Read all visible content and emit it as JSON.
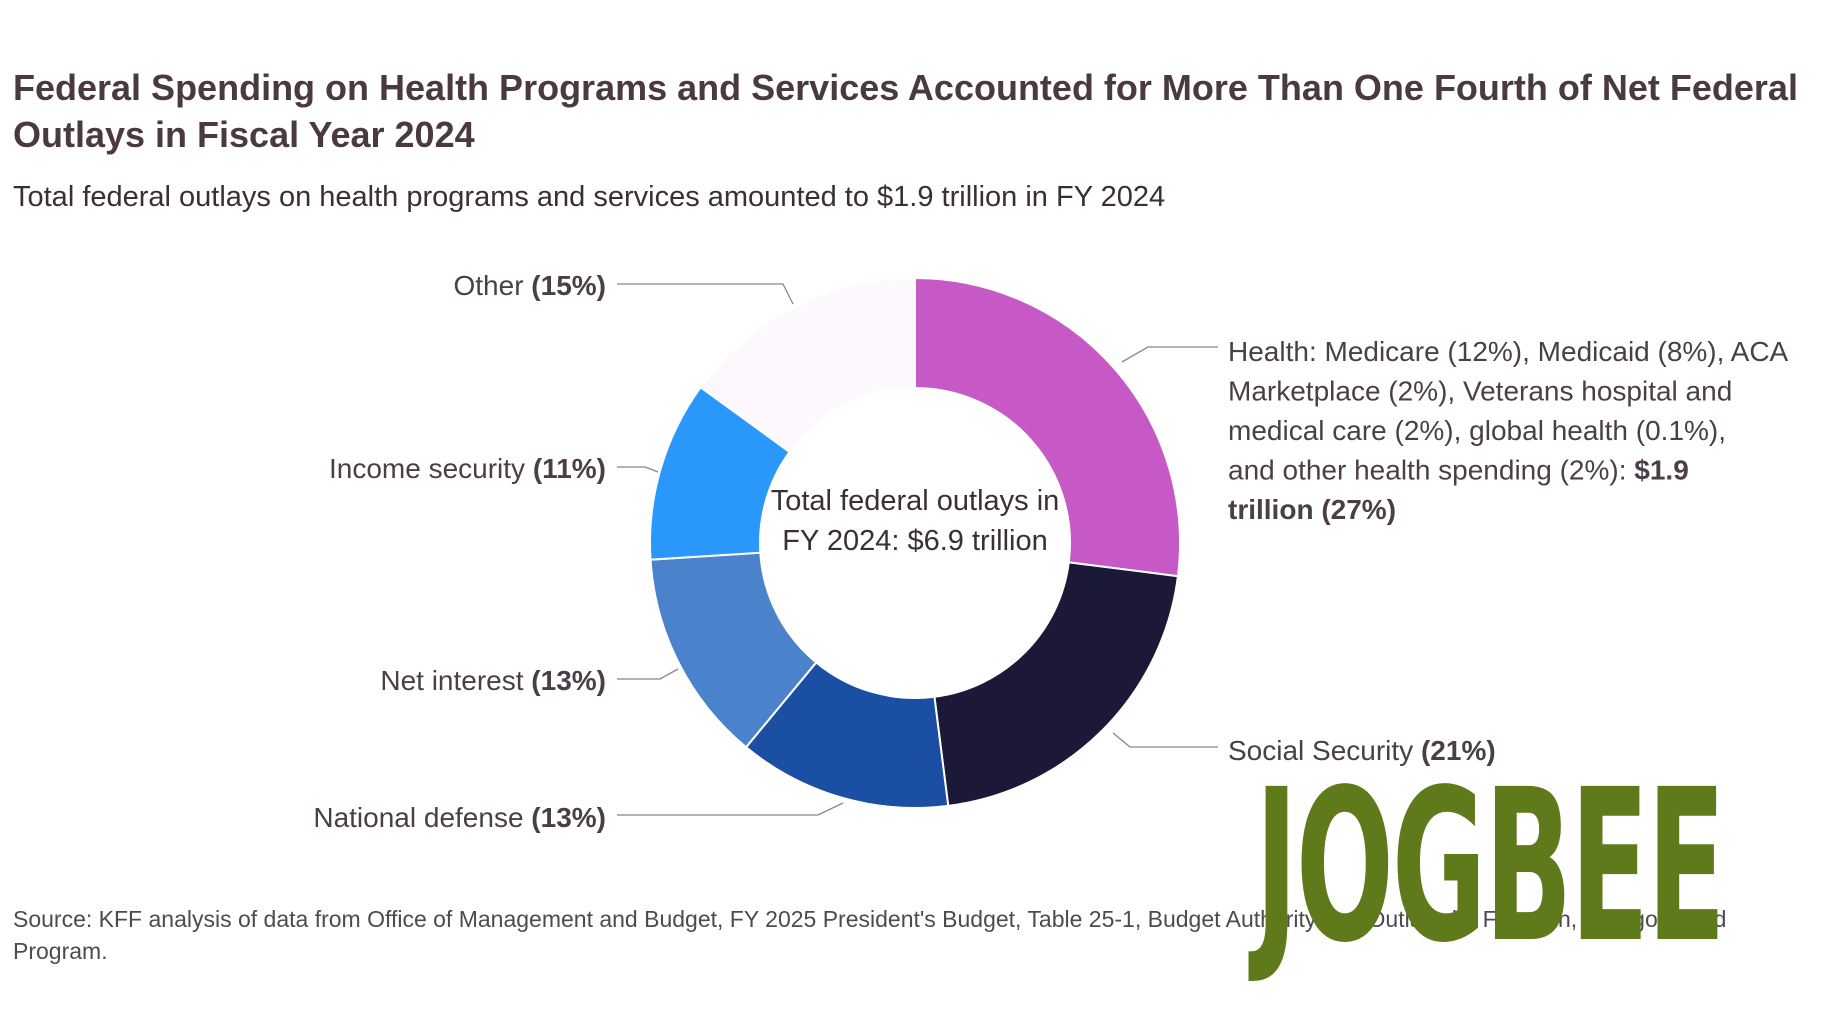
{
  "title": "Federal Spending on Health Programs and Services Accounted for More Than One Fourth of Net Federal Outlays in Fiscal Year 2024",
  "subtitle": "Total federal outlays on health programs and services amounted to $1.9 trillion in FY 2024",
  "center_label": "Total federal outlays in FY 2024: $6.9 trillion",
  "source": "Source: KFF analysis of data from Office of Management and Budget, FY 2025 President's Budget, Table 25-1, Budget Authority and Outlays by Function, Category, and Program.",
  "watermark": "JOGBEE",
  "chart_data": {
    "type": "pie",
    "variant": "donut",
    "start_angle_deg": 0,
    "direction": "clockwise",
    "slices": [
      {
        "name": "Health",
        "value": 27,
        "color": "#c659c6",
        "label_lines": [
          [
            {
              "t": "Health: Medicare (12%), Medicaid (8%), ACA",
              "b": false
            }
          ],
          [
            {
              "t": "Marketplace (2%), Veterans hospital and",
              "b": false
            }
          ],
          [
            {
              "t": "medical care (2%), global health (0.1%),",
              "b": false
            }
          ],
          [
            {
              "t": "and other health spending (2%): ",
              "b": false
            },
            {
              "t": "$1.9",
              "b": true
            }
          ],
          [
            {
              "t": "trillion (27%)",
              "b": true
            }
          ]
        ]
      },
      {
        "name": "Social Security",
        "value": 21,
        "color": "#1c1838",
        "label_lines": [
          [
            {
              "t": "Social Security ",
              "b": false
            },
            {
              "t": "(21%)",
              "b": true
            }
          ]
        ]
      },
      {
        "name": "National defense",
        "value": 13,
        "color": "#1b4fa3",
        "label_lines": [
          [
            {
              "t": "National defense ",
              "b": false
            },
            {
              "t": "(13%)",
              "b": true
            }
          ]
        ]
      },
      {
        "name": "Net interest",
        "value": 13,
        "color": "#4a82cc",
        "label_lines": [
          [
            {
              "t": "Net interest ",
              "b": false
            },
            {
              "t": "(13%)",
              "b": true
            }
          ]
        ]
      },
      {
        "name": "Income security",
        "value": 11,
        "color": "#2998fa",
        "label_lines": [
          [
            {
              "t": "Income security ",
              "b": false
            },
            {
              "t": "(11%)",
              "b": true
            }
          ]
        ]
      },
      {
        "name": "Other",
        "value": 15,
        "color": "#fdf8fd",
        "label_lines": [
          [
            {
              "t": "Other ",
              "b": false
            },
            {
              "t": "(15%)",
              "b": true
            }
          ]
        ]
      }
    ]
  }
}
